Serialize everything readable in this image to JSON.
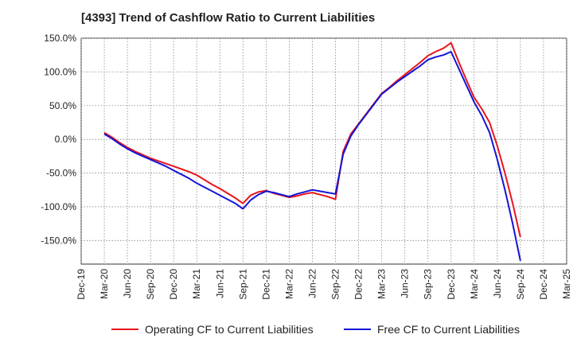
{
  "chart_data": {
    "type": "line",
    "title": "[4393]  Trend of Cashflow Ratio to Current Liabilities",
    "xlabel": "",
    "ylabel": "",
    "ylim": [
      -185,
      150
    ],
    "yticks": [
      "150.0%",
      "100.0%",
      "50.0%",
      "0.0%",
      "-50.0%",
      "-100.0%",
      "-150.0%"
    ],
    "ytick_values": [
      150,
      100,
      50,
      0,
      -50,
      -100,
      -150
    ],
    "xticks": [
      "Dec-19",
      "Mar-20",
      "Jun-20",
      "Sep-20",
      "Dec-20",
      "Mar-21",
      "Jun-21",
      "Sep-21",
      "Dec-21",
      "Mar-22",
      "Jun-22",
      "Sep-22",
      "Dec-22",
      "Mar-23",
      "Jun-23",
      "Sep-23",
      "Dec-23",
      "Mar-24",
      "Jun-24",
      "Sep-24",
      "Dec-24",
      "Mar-25"
    ],
    "grid": true,
    "legend_position": "bottom",
    "series": [
      {
        "name": "Operating CF to Current Liabilities",
        "color": "#e8141c",
        "x": [
          "Mar-20",
          "Apr-20",
          "May-20",
          "Jun-20",
          "Jul-20",
          "Aug-20",
          "Sep-20",
          "Oct-20",
          "Nov-20",
          "Dec-20",
          "Jan-21",
          "Feb-21",
          "Mar-21",
          "Apr-21",
          "May-21",
          "Jun-21",
          "Jul-21",
          "Aug-21",
          "Sep-21",
          "Oct-21",
          "Nov-21",
          "Dec-21",
          "Jan-22",
          "Feb-22",
          "Mar-22",
          "Apr-22",
          "May-22",
          "Jun-22",
          "Jul-22",
          "Aug-22",
          "Sep-22",
          "Oct-22",
          "Nov-22",
          "Dec-22",
          "Jan-23",
          "Feb-23",
          "Mar-23",
          "Apr-23",
          "May-23",
          "Jun-23",
          "Jul-23",
          "Aug-23",
          "Sep-23",
          "Oct-23",
          "Nov-23",
          "Dec-23",
          "Jan-24",
          "Feb-24",
          "Mar-24",
          "Apr-24",
          "May-24",
          "Jun-24",
          "Jul-24",
          "Aug-24",
          "Sep-24"
        ],
        "values": [
          10,
          3,
          -5,
          -12,
          -18,
          -23,
          -28,
          -32,
          -36,
          -40,
          -44,
          -48,
          -53,
          -60,
          -67,
          -73,
          -80,
          -87,
          -95,
          -83,
          -78,
          -76,
          -80,
          -83,
          -86,
          -84,
          -81,
          -79,
          -82,
          -85,
          -89,
          -18,
          8,
          23,
          38,
          53,
          68,
          77,
          87,
          96,
          105,
          114,
          124,
          130,
          135,
          143,
          115,
          88,
          62,
          45,
          25,
          -10,
          -50,
          -95,
          -145
        ]
      },
      {
        "name": "Free CF to Current Liabilities",
        "color": "#1414d8",
        "x": [
          "Mar-20",
          "Apr-20",
          "May-20",
          "Jun-20",
          "Jul-20",
          "Aug-20",
          "Sep-20",
          "Oct-20",
          "Nov-20",
          "Dec-20",
          "Jan-21",
          "Feb-21",
          "Mar-21",
          "Apr-21",
          "May-21",
          "Jun-21",
          "Jul-21",
          "Aug-21",
          "Sep-21",
          "Oct-21",
          "Nov-21",
          "Dec-21",
          "Jan-22",
          "Feb-22",
          "Mar-22",
          "Apr-22",
          "May-22",
          "Jun-22",
          "Jul-22",
          "Aug-22",
          "Sep-22",
          "Oct-22",
          "Nov-22",
          "Dec-22",
          "Jan-23",
          "Feb-23",
          "Mar-23",
          "Apr-23",
          "May-23",
          "Jun-23",
          "Jul-23",
          "Aug-23",
          "Sep-23",
          "Oct-23",
          "Nov-23",
          "Dec-23",
          "Jan-24",
          "Feb-24",
          "Mar-24",
          "Apr-24",
          "May-24",
          "Jun-24",
          "Jul-24",
          "Aug-24",
          "Sep-24"
        ],
        "values": [
          8,
          1,
          -7,
          -14,
          -20,
          -25,
          -30,
          -35,
          -40,
          -46,
          -52,
          -58,
          -65,
          -71,
          -77,
          -83,
          -89,
          -95,
          -103,
          -90,
          -82,
          -77,
          -79,
          -82,
          -85,
          -81,
          -78,
          -75,
          -77,
          -79,
          -81,
          -22,
          5,
          22,
          37,
          52,
          67,
          76,
          85,
          93,
          101,
          109,
          118,
          122,
          125,
          130,
          105,
          80,
          55,
          35,
          10,
          -30,
          -75,
          -125,
          -180
        ]
      }
    ]
  }
}
